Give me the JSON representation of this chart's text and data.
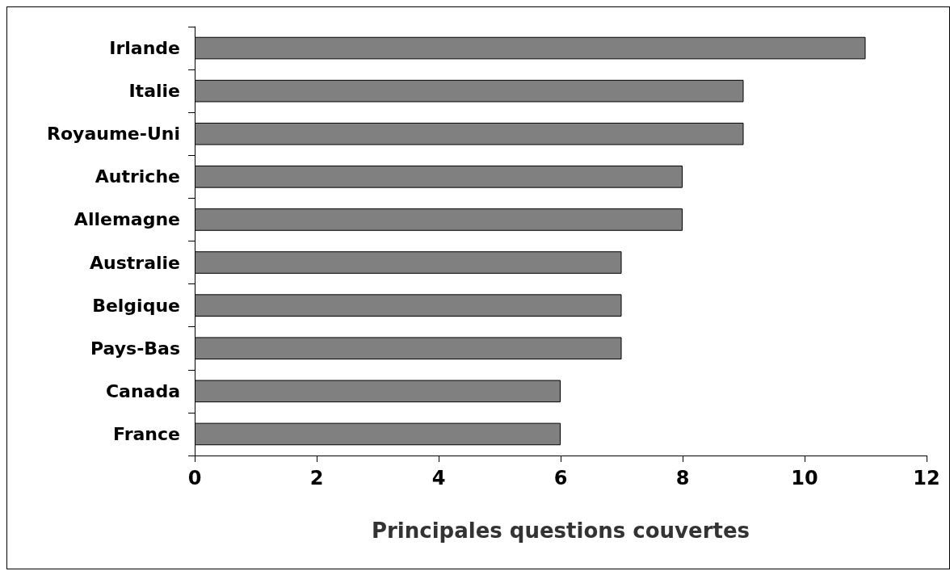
{
  "chart_data": {
    "type": "bar",
    "orientation": "horizontal",
    "xlabel": "Principales questions couvertes",
    "categories": [
      "Irlande",
      "Italie",
      "Royaume-Uni",
      "Autriche",
      "Allemagne",
      "Australie",
      "Belgique",
      "Pays-Bas",
      "Canada",
      "France"
    ],
    "values": [
      11,
      9,
      9,
      8,
      8,
      7,
      7,
      7,
      6,
      6
    ],
    "color": "#808080",
    "xlim": [
      0,
      12
    ],
    "xticks": [
      0,
      2,
      4,
      6,
      8,
      10,
      12
    ],
    "grid": false
  }
}
